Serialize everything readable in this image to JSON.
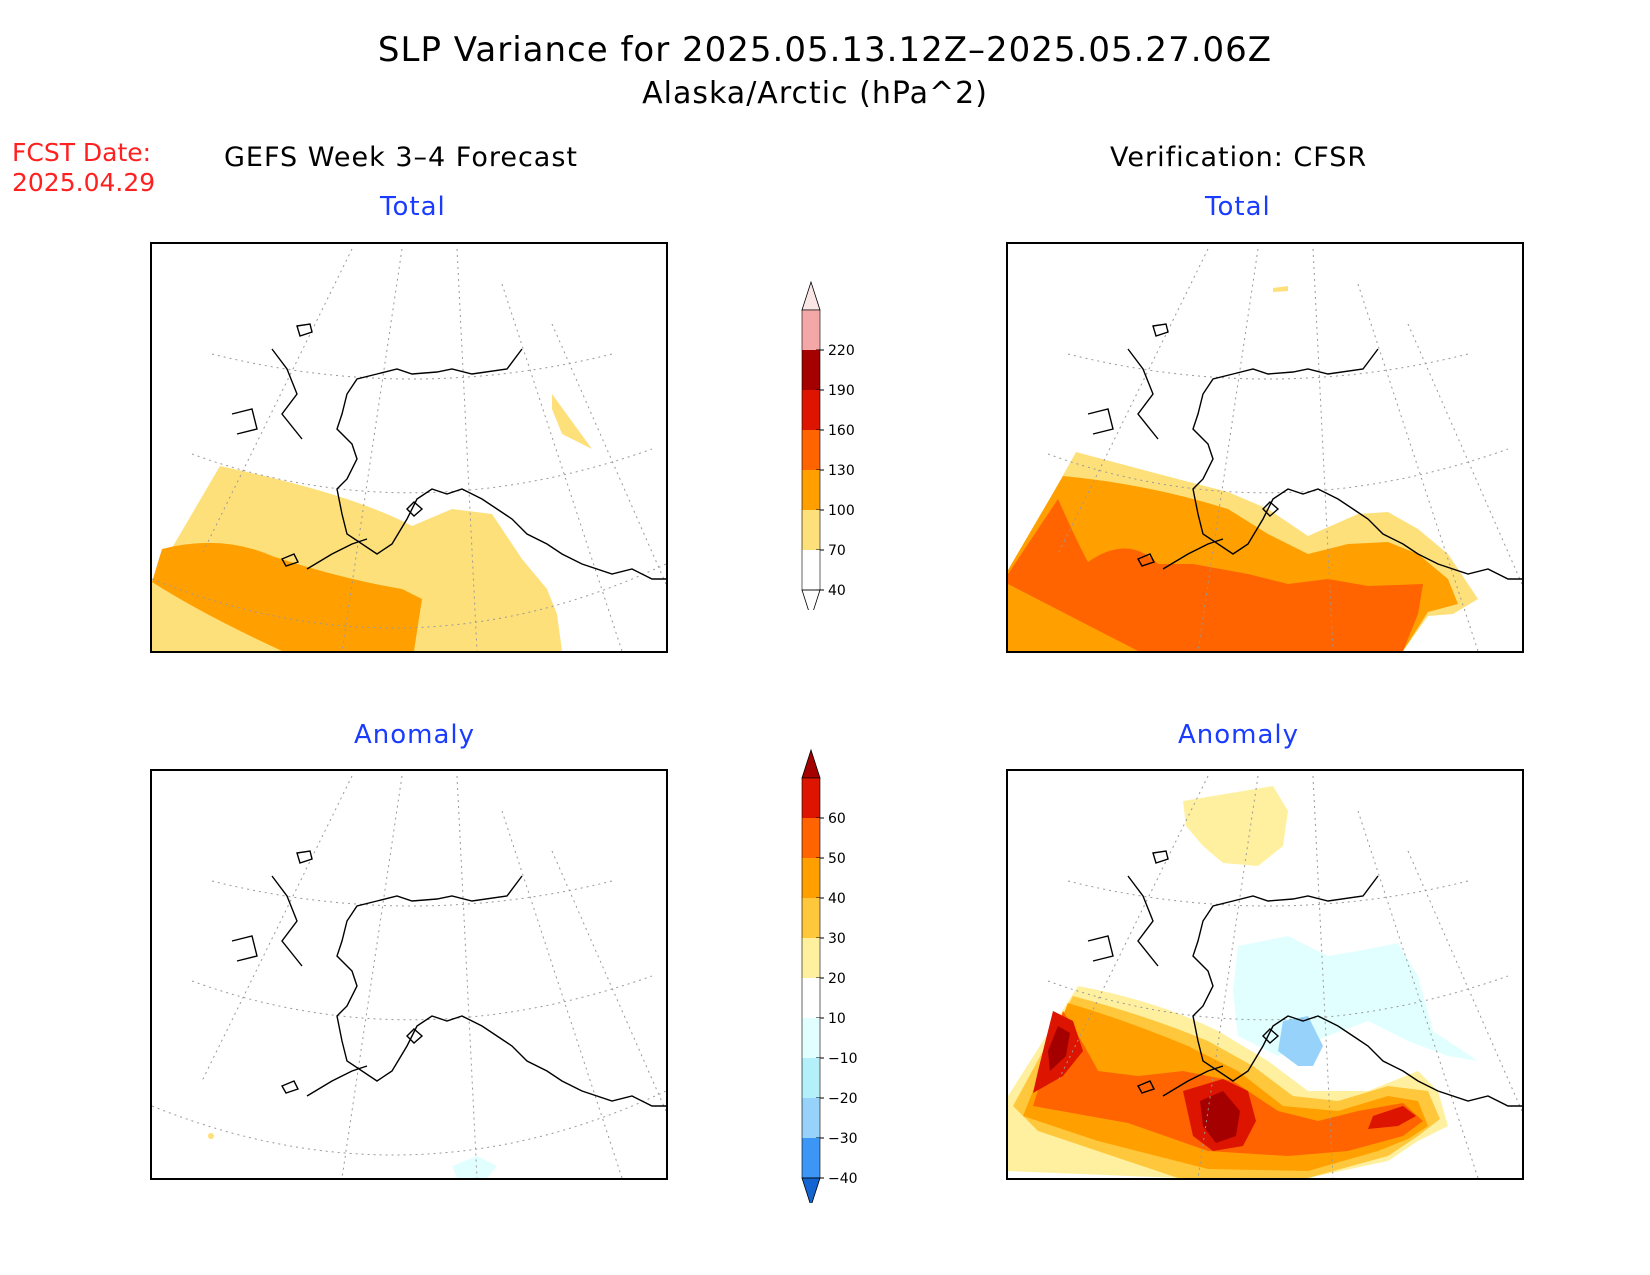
{
  "title": {
    "main": "SLP Variance for 2025.05.13.12Z–2025.05.27.06Z",
    "sub": "Alaska/Arctic (hPa^2)"
  },
  "forecast_date": {
    "label": "FCST Date:",
    "value": "2025.04.29"
  },
  "columns": {
    "left": "GEFS Week 3–4 Forecast",
    "right": "Verification: CFSR"
  },
  "panels": [
    {
      "id": "forecast-total",
      "label": "Total"
    },
    {
      "id": "verification-total",
      "label": "Total"
    },
    {
      "id": "forecast-anomaly",
      "label": "Anomaly"
    },
    {
      "id": "verification-anomaly",
      "label": "Anomaly"
    }
  ],
  "colorbars": {
    "total": {
      "levels": [
        {
          "value": "220",
          "color": "#f3a7a7"
        },
        {
          "value": "190",
          "color": "#a50000"
        },
        {
          "value": "160",
          "color": "#dc1400"
        },
        {
          "value": "130",
          "color": "#ff6400"
        },
        {
          "value": "100",
          "color": "#ffa000"
        },
        {
          "value": "70",
          "color": "#fee07a"
        },
        {
          "value": "40",
          "color": "#ffffff"
        }
      ],
      "top_color": "#fbe6e6"
    },
    "anomaly": {
      "levels": [
        {
          "value": "60",
          "color": "#dc1400"
        },
        {
          "value": "50",
          "color": "#ff6400"
        },
        {
          "value": "40",
          "color": "#ffa000"
        },
        {
          "value": "30",
          "color": "#ffc83c"
        },
        {
          "value": "20",
          "color": "#fff0a0"
        },
        {
          "value": "10",
          "color": "#ffffff"
        },
        {
          "value": "−10",
          "color": "#e1ffff"
        },
        {
          "value": "−20",
          "color": "#b4f0fa"
        },
        {
          "value": "−30",
          "color": "#96d2fa"
        },
        {
          "value": "−40",
          "color": "#3c96f5"
        }
      ],
      "top_color": "#a50000",
      "bottom_color": "#1464d2"
    }
  },
  "colors": {
    "yellow": "#fee07a",
    "orange": "#ffa000",
    "dark_orange": "#ff6400",
    "red": "#dc1400",
    "dark_red": "#a50000",
    "light_yellow": "#fff0a0",
    "mid_yellow": "#ffc83c",
    "light_cyan": "#e1ffff",
    "cyan": "#b4f0fa",
    "blue": "#96d2fa",
    "forecast_date": "#ff2020",
    "panel_label": "#1a3cff"
  }
}
